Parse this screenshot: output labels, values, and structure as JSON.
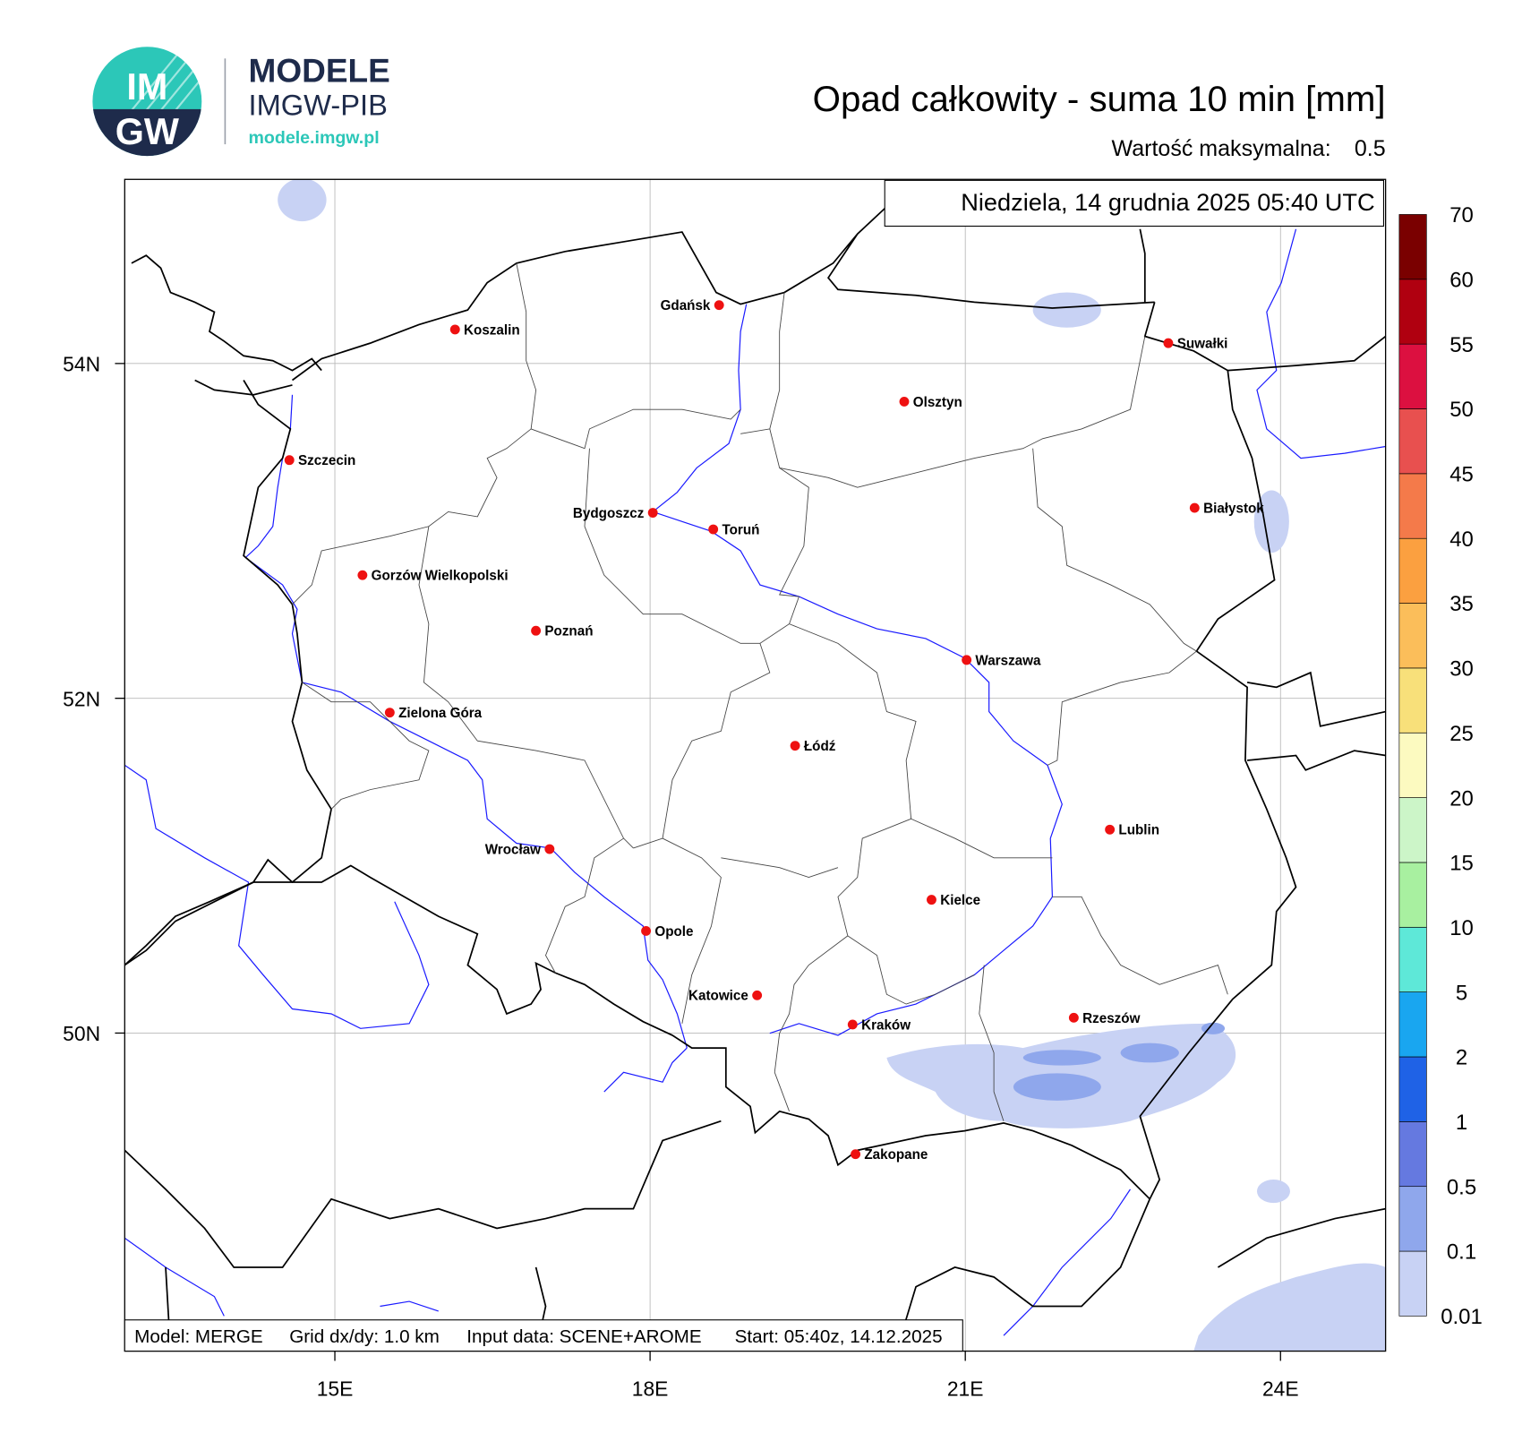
{
  "header": {
    "logo_top": "IM",
    "logo_bottom": "GW",
    "brand": "MODELE",
    "brand_sub": "IMGW-PIB",
    "url": "modele.imgw.pl"
  },
  "map": {
    "title": "Opad całkowity - suma 10 min [mm]",
    "max_label": "Wartość maksymalna:",
    "max_value": 0.5,
    "timestamp": "Niedziela, 14 grudnia 2025 05:40 UTC",
    "footer": [
      "Model: MERGE",
      "Grid dx/dy: 1.0 km",
      "Input data: SCENE+AROME",
      "Start: 05:40z, 14.12.2025"
    ],
    "xlim": [
      13,
      25
    ],
    "ylim": [
      48.1,
      55.1
    ],
    "xticks": [
      {
        "value": 15,
        "label": "15E"
      },
      {
        "value": 18,
        "label": "18E"
      },
      {
        "value": 21,
        "label": "21E"
      },
      {
        "value": 24,
        "label": "24E"
      }
    ],
    "yticks": [
      {
        "value": 50,
        "label": "50N"
      },
      {
        "value": 52,
        "label": "52N"
      },
      {
        "value": 54,
        "label": "54N"
      }
    ],
    "grid": true,
    "cities": [
      "Gdańsk",
      "Koszalin",
      "Suwałki",
      "Olsztyn",
      "Szczecin",
      "Białystok",
      "Bydgoszcz",
      "Toruń",
      "Gorzów Wielkopolski",
      "Poznań",
      "Warszawa",
      "Zielona Góra",
      "Łódź",
      "Lublin",
      "Wrocław",
      "Kielce",
      "Opole",
      "Katowice",
      "Kraków",
      "Rzeszów",
      "Zakopane"
    ],
    "city_color": "#ee1111"
  },
  "colorbar": {
    "levels": [
      0.01,
      0.1,
      0.5,
      1,
      2,
      5,
      10,
      15,
      20,
      25,
      30,
      35,
      40,
      45,
      50,
      55,
      60,
      70
    ],
    "colors": [
      "#c8d2f4",
      "#8fa7ec",
      "#6579e0",
      "#1f62e6",
      "#19a6f0",
      "#5ee8d8",
      "#a8f0a0",
      "#ccf5c8",
      "#fcfac0",
      "#f8e07a",
      "#fbbe5a",
      "#fba040",
      "#f47a4a",
      "#e8504f",
      "#dc1040",
      "#b00010",
      "#7a0000"
    ]
  }
}
